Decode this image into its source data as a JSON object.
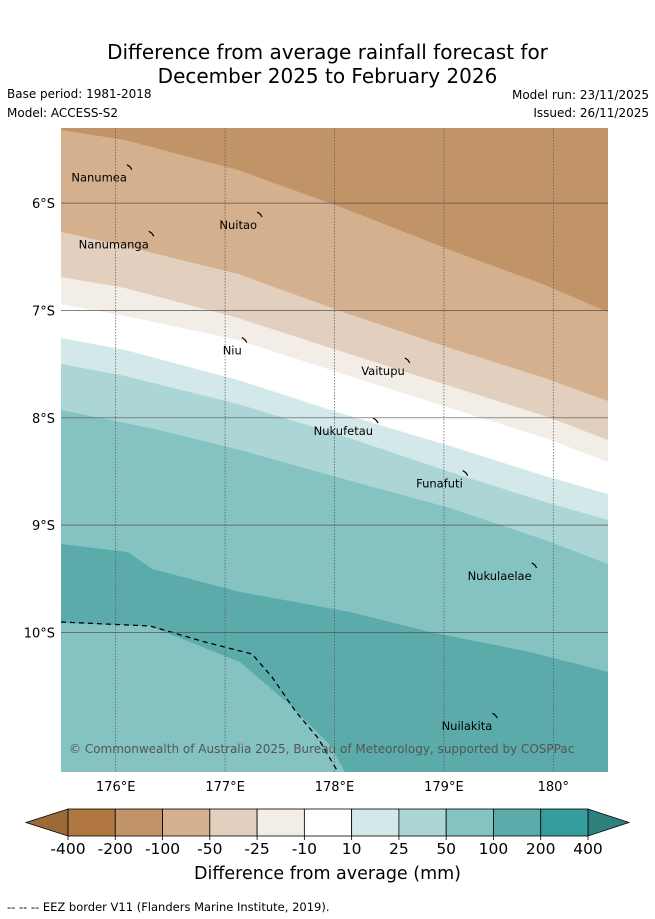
{
  "title": {
    "line1": "Difference from average rainfall forecast for",
    "line2": "December 2025 to February 2026"
  },
  "meta": {
    "base_period": "Base period: 1981-2018",
    "model": "Model: ACCESS-S2",
    "model_run": "Model run: 23/11/2025",
    "issued": "Issued: 26/11/2025"
  },
  "map": {
    "lon_range": [
      175.5,
      180.5
    ],
    "lat_range": [
      -11.3,
      -5.3
    ],
    "x_ticks": [
      {
        "lon": 176,
        "label": "176°E"
      },
      {
        "lon": 177,
        "label": "177°E"
      },
      {
        "lon": 178,
        "label": "178°E"
      },
      {
        "lon": 179,
        "label": "179°E"
      },
      {
        "lon": 180,
        "label": "180°"
      }
    ],
    "y_ticks": [
      {
        "lat": -6,
        "label": "6°S"
      },
      {
        "lat": -7,
        "label": "7°S"
      },
      {
        "lat": -8,
        "label": "8°S"
      },
      {
        "lat": -9,
        "label": "9°S"
      },
      {
        "lat": -10,
        "label": "10°S"
      }
    ],
    "islands": [
      {
        "name": "Nanumea",
        "lon": 176.13,
        "lat": -5.67
      },
      {
        "name": "Nuitao",
        "lon": 177.32,
        "lat": -6.11
      },
      {
        "name": "Nanumanga",
        "lon": 176.33,
        "lat": -6.29
      },
      {
        "name": "Niu",
        "lon": 177.18,
        "lat": -7.28
      },
      {
        "name": "Vaitupu",
        "lon": 178.67,
        "lat": -7.47
      },
      {
        "name": "Nukufetau",
        "lon": 178.38,
        "lat": -8.03
      },
      {
        "name": "Funafuti",
        "lon": 179.2,
        "lat": -8.52
      },
      {
        "name": "Nukulaelae",
        "lon": 179.83,
        "lat": -9.38
      },
      {
        "name": "Nuilakita",
        "lon": 179.47,
        "lat": -10.78
      }
    ],
    "copyright": "© Commonwealth of Australia 2025, Bureau of Meteorology, supported by COSPPac"
  },
  "colorbar": {
    "boundaries": [
      "-400",
      "-200",
      "-100",
      "-50",
      "-25",
      "-10",
      "10",
      "25",
      "50",
      "100",
      "200",
      "400"
    ],
    "colors": [
      "#b07840",
      "#c19468",
      "#d4b08f",
      "#e3cfbd",
      "#f3ede7",
      "#ffffff",
      "#d3e8e8",
      "#acd5d5",
      "#85c3c2",
      "#5babab",
      "#359d9c"
    ],
    "under_color": "#9c6a38",
    "over_color": "#2f7f7f",
    "label": "Difference from average (mm)"
  },
  "legend": {
    "eez_text": "-- -- -- EEZ border V11 (Flanders Marine Institute, 2019)."
  }
}
